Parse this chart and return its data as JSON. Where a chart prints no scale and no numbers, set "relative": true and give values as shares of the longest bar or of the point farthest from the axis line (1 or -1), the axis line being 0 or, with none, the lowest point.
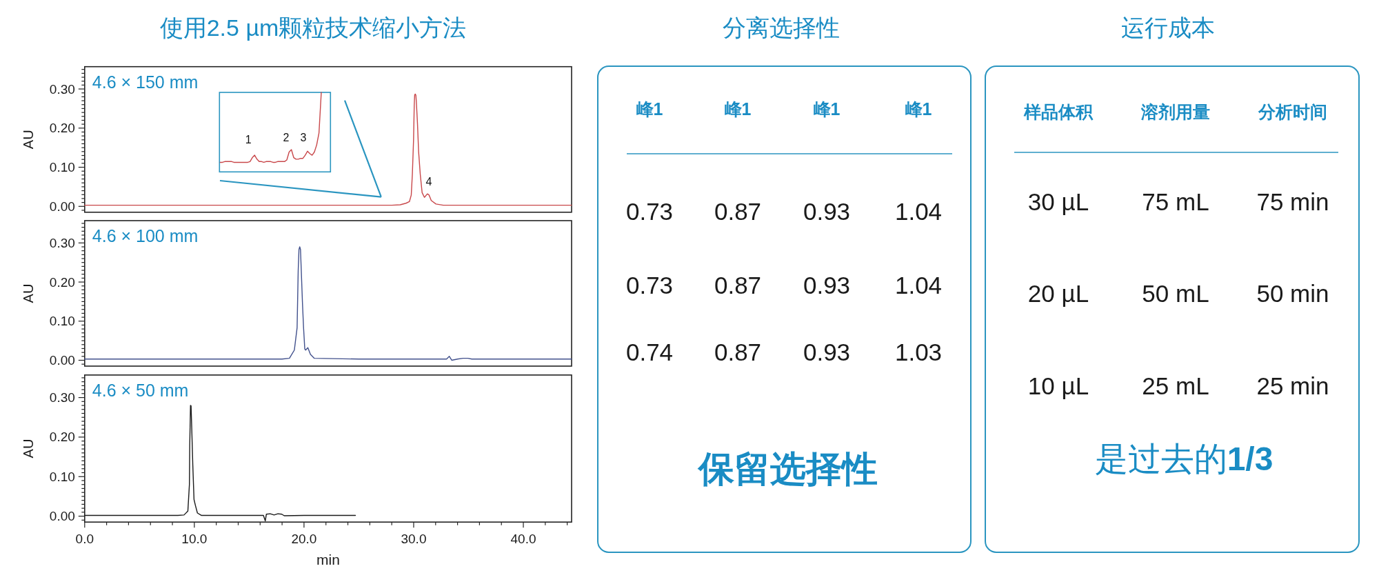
{
  "chart_data": [
    {
      "type": "line",
      "title": "使用2.5 µm颗粒技术缩小方法",
      "subtitle": "4.6 × 150 mm",
      "ylabel": "AU",
      "xlim": [
        0,
        44.4
      ],
      "ylim": [
        -0.015,
        0.357
      ],
      "tick_labels": "y",
      "yticks": [
        {
          "value": -0.01,
          "label": null
        },
        {
          "value": 0,
          "label": "0.00"
        },
        {
          "value": 0.01,
          "label": null
        },
        {
          "value": 0.02,
          "label": null
        },
        {
          "value": 0.03,
          "label": null
        },
        {
          "value": 0.04,
          "label": null
        },
        {
          "value": 0.05,
          "label": null
        },
        {
          "value": 0.06,
          "label": null
        },
        {
          "value": 0.07,
          "label": null
        },
        {
          "value": 0.08,
          "label": null
        },
        {
          "value": 0.09,
          "label": null
        },
        {
          "value": 0.1,
          "label": "0.10"
        },
        {
          "value": 0.11,
          "label": null
        },
        {
          "value": 0.12,
          "label": null
        },
        {
          "value": 0.13,
          "label": null
        },
        {
          "value": 0.14,
          "label": null
        },
        {
          "value": 0.15,
          "label": null
        },
        {
          "value": 0.16,
          "label": null
        },
        {
          "value": 0.17,
          "label": null
        },
        {
          "value": 0.18,
          "label": null
        },
        {
          "value": 0.19,
          "label": null
        },
        {
          "value": 0.2,
          "label": "0.20"
        },
        {
          "value": 0.21,
          "label": null
        },
        {
          "value": 0.22,
          "label": null
        },
        {
          "value": 0.23,
          "label": null
        },
        {
          "value": 0.24,
          "label": null
        },
        {
          "value": 0.25,
          "label": null
        },
        {
          "value": 0.26,
          "label": null
        },
        {
          "value": 0.27,
          "label": null
        },
        {
          "value": 0.28,
          "label": null
        },
        {
          "value": 0.29,
          "label": null
        },
        {
          "value": 0.3,
          "label": "0.30"
        },
        {
          "value": 0.31,
          "label": null
        },
        {
          "value": 0.32,
          "label": null
        },
        {
          "value": 0.33,
          "label": null
        },
        {
          "value": 0.34,
          "label": null
        },
        {
          "value": 0.35,
          "label": null
        }
      ],
      "series": [
        {
          "color": "#c8474a",
          "x": [
            0,
            10,
            20,
            28.0,
            28.77,
            29.3,
            29.61,
            29.78,
            29.88,
            29.99,
            30.05,
            30.09,
            30.14,
            30.2,
            30.24,
            30.35,
            30.45,
            30.6,
            30.77,
            30.98,
            31.25,
            31.4,
            31.6,
            32.03,
            32.7,
            40,
            44.4
          ],
          "values": [
            0.003,
            0.003,
            0.003,
            0.003,
            0.004,
            0.008,
            0.012,
            0.029,
            0.082,
            0.17,
            0.257,
            0.284,
            0.287,
            0.284,
            0.269,
            0.21,
            0.14,
            0.082,
            0.035,
            0.023,
            0.032,
            0.029,
            0.015,
            0.006,
            0.003,
            0.003,
            0.003
          ]
        }
      ],
      "annotations": [
        {
          "text": "4",
          "x": 31.25,
          "y": 0.032
        }
      ]
    },
    {
      "type": "line",
      "relative": true,
      "categories": [
        null,
        null,
        null,
        null,
        null,
        null,
        null,
        null,
        null,
        null,
        null,
        null,
        null,
        null,
        null,
        null,
        null,
        null,
        null,
        null,
        null,
        null,
        null,
        null,
        null,
        null,
        null,
        null,
        null,
        null,
        null,
        null,
        null,
        null,
        null,
        null,
        null,
        null,
        null,
        null,
        null,
        null,
        null,
        null,
        null
      ],
      "series": [
        {
          "color": "#c8474a",
          "values": [
            0.12,
            0.12,
            0.13,
            0.13,
            0.13,
            0.13,
            0.12,
            0.12,
            0.12,
            0.12,
            0.12,
            0.12,
            0.12,
            0.13,
            0.18,
            0.21,
            0.16,
            0.13,
            0.13,
            0.12,
            0.13,
            0.13,
            0.13,
            0.12,
            0.12,
            0.13,
            0.13,
            0.13,
            0.13,
            0.15,
            0.25,
            0.28,
            0.18,
            0.16,
            0.16,
            0.17,
            0.17,
            0.21,
            0.26,
            0.23,
            0.21,
            0.25,
            0.34,
            0.49,
            1
          ]
        }
      ],
      "annotations": [
        "1",
        "2",
        "3"
      ]
    },
    {
      "type": "line",
      "subtitle": "4.6 × 100 mm",
      "ylabel": "AU",
      "xlim": [
        0,
        44.4
      ],
      "ylim": [
        -0.015,
        0.357
      ],
      "tick_labels": "y",
      "yticks": [
        {
          "value": -0.01,
          "label": null
        },
        {
          "value": 0,
          "label": "0.00"
        },
        {
          "value": 0.01,
          "label": null
        },
        {
          "value": 0.02,
          "label": null
        },
        {
          "value": 0.03,
          "label": null
        },
        {
          "value": 0.04,
          "label": null
        },
        {
          "value": 0.05,
          "label": null
        },
        {
          "value": 0.06,
          "label": null
        },
        {
          "value": 0.07,
          "label": null
        },
        {
          "value": 0.08,
          "label": null
        },
        {
          "value": 0.09,
          "label": null
        },
        {
          "value": 0.1,
          "label": "0.10"
        },
        {
          "value": 0.11,
          "label": null
        },
        {
          "value": 0.12,
          "label": null
        },
        {
          "value": 0.13,
          "label": null
        },
        {
          "value": 0.14,
          "label": null
        },
        {
          "value": 0.15,
          "label": null
        },
        {
          "value": 0.16,
          "label": null
        },
        {
          "value": 0.17,
          "label": null
        },
        {
          "value": 0.18,
          "label": null
        },
        {
          "value": 0.19,
          "label": null
        },
        {
          "value": 0.2,
          "label": "0.20"
        },
        {
          "value": 0.21,
          "label": null
        },
        {
          "value": 0.22,
          "label": null
        },
        {
          "value": 0.23,
          "label": null
        },
        {
          "value": 0.24,
          "label": null
        },
        {
          "value": 0.25,
          "label": null
        },
        {
          "value": 0.26,
          "label": null
        },
        {
          "value": 0.27,
          "label": null
        },
        {
          "value": 0.28,
          "label": null
        },
        {
          "value": 0.29,
          "label": null
        },
        {
          "value": 0.3,
          "label": "0.30"
        },
        {
          "value": 0.31,
          "label": null
        },
        {
          "value": 0.32,
          "label": null
        },
        {
          "value": 0.33,
          "label": null
        },
        {
          "value": 0.34,
          "label": null
        },
        {
          "value": 0.35,
          "label": null
        }
      ],
      "series": [
        {
          "color": "#41508c",
          "x": [
            0,
            10,
            18.0,
            18.67,
            19.12,
            19.37,
            19.47,
            19.54,
            19.61,
            19.68,
            19.75,
            19.86,
            19.96,
            20.07,
            20.15,
            20.35,
            20.59,
            20.94,
            25,
            33.0,
            33.25,
            33.47,
            34.0,
            34.5,
            34.94,
            35.3,
            36,
            44.4
          ],
          "values": [
            0.003,
            0.003,
            0.003,
            0.005,
            0.026,
            0.083,
            0.229,
            0.283,
            0.29,
            0.283,
            0.23,
            0.146,
            0.083,
            0.029,
            0.026,
            0.032,
            0.015,
            0.005,
            0.003,
            0.003,
            0.01,
            0.0,
            0.003,
            0.005,
            0.005,
            0.003,
            0.003,
            0.003
          ]
        }
      ]
    },
    {
      "type": "line",
      "subtitle": "4.6 × 50 mm",
      "ylabel": "AU",
      "xlabel": "min",
      "xlim": [
        0,
        44.4
      ],
      "ylim": [
        -0.015,
        0.357
      ],
      "xticks": [
        {
          "value": 0,
          "label": "0.0"
        },
        {
          "value": 2,
          "label": null
        },
        {
          "value": 4,
          "label": null
        },
        {
          "value": 6,
          "label": null
        },
        {
          "value": 8,
          "label": null
        },
        {
          "value": 10,
          "label": "10.0"
        },
        {
          "value": 12,
          "label": null
        },
        {
          "value": 14,
          "label": null
        },
        {
          "value": 16,
          "label": null
        },
        {
          "value": 18,
          "label": null
        },
        {
          "value": 20,
          "label": "20.0"
        },
        {
          "value": 22,
          "label": null
        },
        {
          "value": 24,
          "label": null
        },
        {
          "value": 26,
          "label": null
        },
        {
          "value": 28,
          "label": null
        },
        {
          "value": 30,
          "label": "30.0"
        },
        {
          "value": 32,
          "label": null
        },
        {
          "value": 34,
          "label": null
        },
        {
          "value": 36,
          "label": null
        },
        {
          "value": 38,
          "label": null
        },
        {
          "value": 40,
          "label": "40.0"
        },
        {
          "value": 42,
          "label": null
        },
        {
          "value": 44,
          "label": null
        }
      ],
      "yticks": [
        {
          "value": -0.01,
          "label": null
        },
        {
          "value": 0,
          "label": "0.00"
        },
        {
          "value": 0.01,
          "label": null
        },
        {
          "value": 0.02,
          "label": null
        },
        {
          "value": 0.03,
          "label": null
        },
        {
          "value": 0.04,
          "label": null
        },
        {
          "value": 0.05,
          "label": null
        },
        {
          "value": 0.06,
          "label": null
        },
        {
          "value": 0.07,
          "label": null
        },
        {
          "value": 0.08,
          "label": null
        },
        {
          "value": 0.09,
          "label": null
        },
        {
          "value": 0.1,
          "label": "0.10"
        },
        {
          "value": 0.11,
          "label": null
        },
        {
          "value": 0.12,
          "label": null
        },
        {
          "value": 0.13,
          "label": null
        },
        {
          "value": 0.14,
          "label": null
        },
        {
          "value": 0.15,
          "label": null
        },
        {
          "value": 0.16,
          "label": null
        },
        {
          "value": 0.17,
          "label": null
        },
        {
          "value": 0.18,
          "label": null
        },
        {
          "value": 0.19,
          "label": null
        },
        {
          "value": 0.2,
          "label": "0.20"
        },
        {
          "value": 0.21,
          "label": null
        },
        {
          "value": 0.22,
          "label": null
        },
        {
          "value": 0.23,
          "label": null
        },
        {
          "value": 0.24,
          "label": null
        },
        {
          "value": 0.25,
          "label": null
        },
        {
          "value": 0.26,
          "label": null
        },
        {
          "value": 0.27,
          "label": null
        },
        {
          "value": 0.28,
          "label": null
        },
        {
          "value": 0.29,
          "label": null
        },
        {
          "value": 0.3,
          "label": "0.30"
        },
        {
          "value": 0.31,
          "label": null
        },
        {
          "value": 0.32,
          "label": null
        },
        {
          "value": 0.33,
          "label": null
        },
        {
          "value": 0.34,
          "label": null
        },
        {
          "value": 0.35,
          "label": null
        }
      ],
      "series": [
        {
          "color": "#1a1a1a",
          "x": [
            0,
            8.5,
            9.06,
            9.41,
            9.55,
            9.58,
            9.65,
            9.7,
            9.76,
            9.86,
            9.97,
            10.1,
            10.28,
            10.63,
            12,
            16.3,
            16.47,
            16.57,
            16.92,
            17.27,
            17.62,
            17.97,
            18.2,
            20,
            24.69
          ],
          "values": [
            0.002,
            0.002,
            0.003,
            0.013,
            0.08,
            0.178,
            0.28,
            0.279,
            0.226,
            0.129,
            0.042,
            0.027,
            0.008,
            0.002,
            0.002,
            0.002,
            -0.012,
            0.005,
            0.006,
            0.003,
            0.006,
            0.005,
            0.001,
            0.002,
            0.002
          ]
        }
      ]
    },
    {
      "type": "other",
      "title": "分离选择性",
      "categories": [
        "峰1",
        "峰1",
        "峰1",
        "峰1"
      ],
      "data_labels": true,
      "series": [
        {
          "values": [
            0.73,
            0.87,
            0.93,
            1.04
          ]
        },
        {
          "values": [
            0.73,
            0.87,
            0.93,
            1.04
          ]
        },
        {
          "values": [
            0.74,
            0.87,
            0.93,
            1.03
          ]
        }
      ],
      "annotations": [
        "保留选择性"
      ]
    },
    {
      "type": "other",
      "title": "运行成本",
      "categories": [
        "样品体积",
        "溶剂用量",
        "分析时间"
      ],
      "series": [
        {
          "values": [
            30,
            75,
            75
          ],
          "value_labels": [
            "30 µL",
            "75 mL",
            "75 min"
          ]
        },
        {
          "values": [
            20,
            50,
            50
          ],
          "value_labels": [
            "20 µL",
            "50 mL",
            "50 min"
          ]
        },
        {
          "values": [
            10,
            25,
            25
          ],
          "value_labels": [
            "10 µL",
            "25 mL",
            "25 min"
          ]
        }
      ],
      "annotations": [
        "是过去的**1/3**"
      ]
    }
  ]
}
